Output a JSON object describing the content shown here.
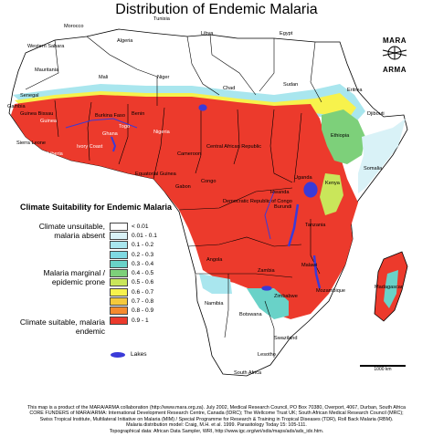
{
  "title": "Distribution of Endemic Malaria",
  "logo": {
    "line1": "MARA",
    "line2": "ARMA"
  },
  "legend": {
    "title": "Climate Suitability for Endemic Malaria",
    "groups": [
      {
        "label": "Climate unsuitable, malaria absent"
      },
      {
        "label": "Malaria marginal / epidemic prone"
      },
      {
        "label": "Climate suitable, malaria endemic"
      }
    ],
    "classes": [
      {
        "label": "< 0.01",
        "color": "#ffffff"
      },
      {
        "label": "0.01 - 0.1",
        "color": "#d9f2f7"
      },
      {
        "label": "0.1 - 0.2",
        "color": "#a9e6ee"
      },
      {
        "label": "0.2 - 0.3",
        "color": "#7fd9e2"
      },
      {
        "label": "0.3 - 0.4",
        "color": "#69d2c8"
      },
      {
        "label": "0.4 - 0.5",
        "color": "#7dd07a"
      },
      {
        "label": "0.5 - 0.6",
        "color": "#c9e65a"
      },
      {
        "label": "0.6 - 0.7",
        "color": "#f7f24c"
      },
      {
        "label": "0.7 - 0.8",
        "color": "#f5c93c"
      },
      {
        "label": "0.8 - 0.9",
        "color": "#f58a2e"
      },
      {
        "label": "0.9 - 1",
        "color": "#ec3a2c"
      }
    ],
    "lakes": {
      "label": "Lakes",
      "color": "#3a3ad8"
    }
  },
  "countries": [
    "Algeria",
    "Tunisia",
    "Libya",
    "Egypt",
    "Morocco",
    "Western Sahara",
    "Mauritania",
    "Mali",
    "Niger",
    "Chad",
    "Sudan",
    "Eritrea",
    "Djibouti",
    "Senegal",
    "Gambia",
    "Guinea Bissau",
    "Guinea",
    "Sierra Leone",
    "Liberia",
    "Ivory Coast",
    "Burkina Faso",
    "Ghana",
    "Togo",
    "Benin",
    "Nigeria",
    "Cameroon",
    "Central African Republic",
    "Ethiopia",
    "Somalia",
    "Equatorial Guinea",
    "Gabon",
    "Congo",
    "Democratic Republic of Congo",
    "Uganda",
    "Kenya",
    "Rwanda",
    "Burundi",
    "Tanzania",
    "Angola",
    "Zambia",
    "Malawi",
    "Mozambique",
    "Zimbabwe",
    "Namibia",
    "Botswana",
    "Madagascar",
    "Swaziland",
    "Lesotho",
    "South Africa"
  ],
  "scale": {
    "label": "1000 km"
  },
  "footer": [
    "This map is a product of the MARA/ARMA collaboration (http://www.mara.org.za). July 2002, Medical Research Council, PO Box 70380, Overport, 4067, Durban, South Africa",
    "CORE FUNDERS of MARA/ARMA: International Development Research Centre, Canada (IDRC); The Wellcome Trust UK; South African Medical Research Council (MRC);",
    "Swiss Tropical Institute, Multilateral Initiative on Malaria (MIM) / Special Programme for Research & Training in Tropical Diseases (TDR), Roll Back Malaria (RBM).",
    "Malaria distribution model: Craig, M.H. et al. 1999. Parasitology Today 15: 105-111.",
    "Topographical data: African Data Sampler, WRI, http://www.igc.org/wri/sdis/maps/ads/ads_idx.htm."
  ]
}
